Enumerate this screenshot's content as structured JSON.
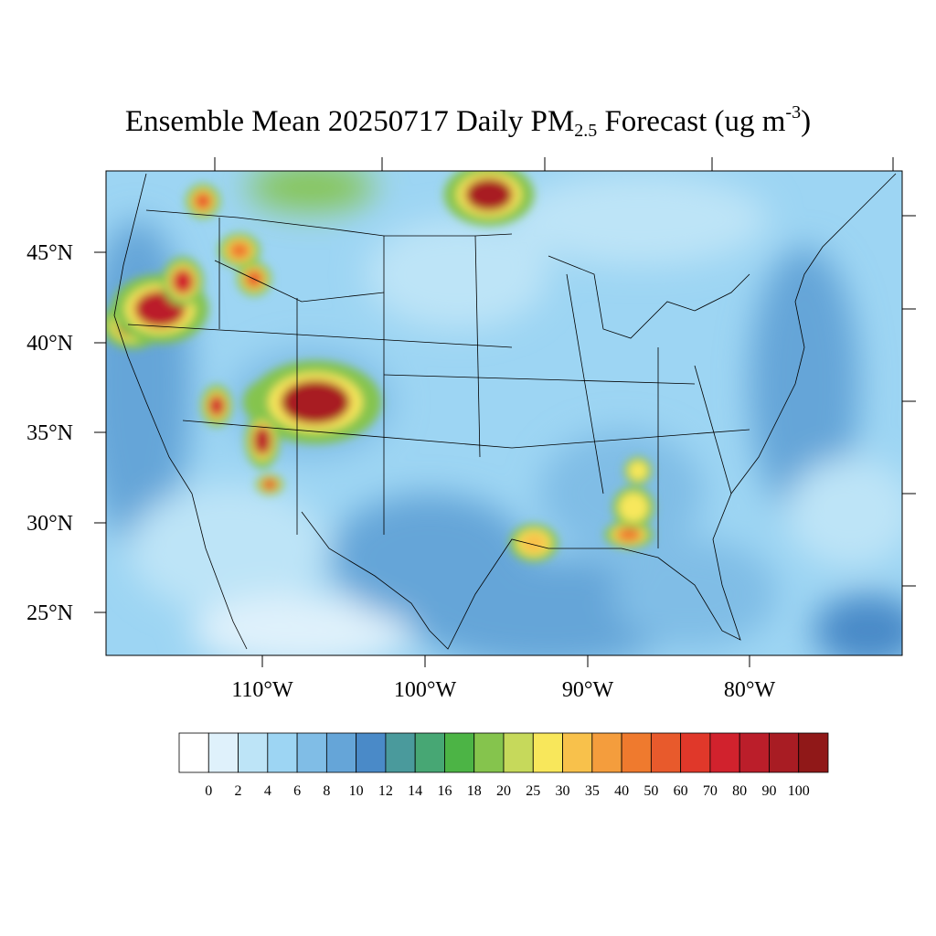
{
  "title": {
    "main": "Ensemble Mean 20250717 Daily PM",
    "sub": "2.5",
    "forecast": " Forecast (ug m",
    "sup": "-3",
    "close": ")"
  },
  "map": {
    "projection": "lambert-conformal",
    "region": "CONUS",
    "lat_labels": [
      "45°N",
      "40°N",
      "35°N",
      "30°N",
      "25°N"
    ],
    "lon_labels": [
      "110°W",
      "100°W",
      "90°W",
      "80°W"
    ],
    "background_level": "4-10",
    "hotspots": [
      {
        "name": "northern-california",
        "level": "90-100"
      },
      {
        "name": "southern-oregon",
        "level": "80-90"
      },
      {
        "name": "idaho",
        "level": "70-80"
      },
      {
        "name": "western-montana",
        "level": "40-50"
      },
      {
        "name": "northern-idaho",
        "level": "50-60"
      },
      {
        "name": "southwest-colorado",
        "level": "90-100"
      },
      {
        "name": "northern-new-mexico",
        "level": "80-90"
      },
      {
        "name": "northern-arizona",
        "level": "70-80"
      },
      {
        "name": "lake-of-the-woods",
        "level": "90-100"
      },
      {
        "name": "southern-louisiana",
        "level": "30-35"
      },
      {
        "name": "southern-alabama",
        "level": "40-50"
      },
      {
        "name": "central-alabama",
        "level": "25-30"
      },
      {
        "name": "southern-nevada",
        "level": "60-70"
      }
    ]
  },
  "colorbar": {
    "colors": [
      "#ffffff",
      "#dff1fb",
      "#bde4f7",
      "#9dd5f3",
      "#80bde6",
      "#65a5d8",
      "#4a8ac8",
      "#4a9a9c",
      "#47a774",
      "#4cb445",
      "#85c44d",
      "#c6d95b",
      "#f8e75b",
      "#f8c14b",
      "#f49d3d",
      "#ef7a2e",
      "#e85a2c",
      "#e0382a",
      "#d1222d",
      "#bb1e2a",
      "#a81c23",
      "#901818"
    ],
    "labels": [
      "0",
      "2",
      "4",
      "6",
      "8",
      "10",
      "12",
      "14",
      "16",
      "18",
      "20",
      "25",
      "30",
      "35",
      "40",
      "50",
      "60",
      "70",
      "80",
      "90",
      "100"
    ]
  }
}
